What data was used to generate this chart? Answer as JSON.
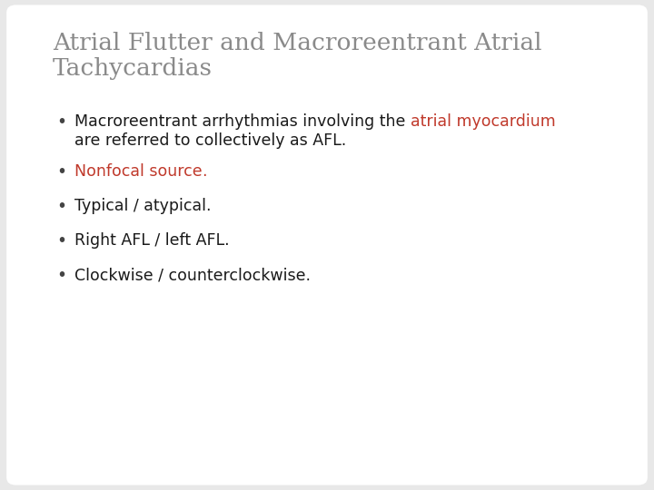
{
  "title_line1": "Atrial Flutter and Macroreentrant Atrial",
  "title_line2": "Tachycardias",
  "title_color": "#8a8a8a",
  "background_color": "#e8e8e8",
  "slide_bg": "#ffffff",
  "red_color": "#c0392b",
  "dark_color": "#1a1a1a",
  "bullet_dot_color": "#444444",
  "bullet_char": "•",
  "title_fontsize": 19,
  "body_fontsize": 12.5,
  "line1_parts": [
    {
      "text": "Macroreentrant arrhythmias involving the ",
      "color": "#1a1a1a"
    },
    {
      "text": "atrial myocardium",
      "color": "#c0392b"
    }
  ],
  "line2_text": "are referred to collectively as AFL.",
  "line2_color": "#1a1a1a",
  "bullet2_text": "Nonfocal source",
  "bullet2_dot": ".",
  "bullet2_color": "#c0392b",
  "bullet3_text": "Typical / atypical.",
  "bullet3_color": "#1a1a1a",
  "bullet4_text": "Right AFL / left AFL.",
  "bullet4_color": "#1a1a1a",
  "bullet5_text": "Clockwise / counterclockwise.",
  "bullet5_color": "#1a1a1a"
}
